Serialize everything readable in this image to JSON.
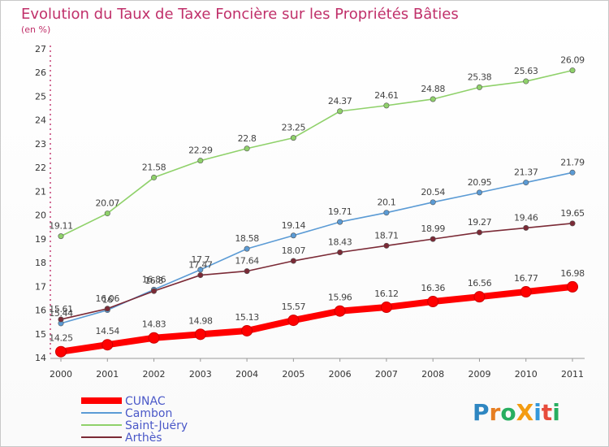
{
  "chart_data": {
    "type": "line",
    "title": "Evolution du Taux de Taxe Foncière sur les Propriétés Bâties",
    "ylabel": "(en %)",
    "xlabel": "",
    "categories": [
      "2000",
      "2001",
      "2002",
      "2003",
      "2004",
      "2005",
      "2006",
      "2007",
      "2008",
      "2009",
      "2010",
      "2011"
    ],
    "ylim": [
      14,
      27
    ],
    "yticks": [
      "14",
      "15",
      "16",
      "17",
      "18",
      "19",
      "20",
      "21",
      "22",
      "23",
      "24",
      "25",
      "26",
      "27"
    ],
    "series": [
      {
        "name": "CUNAC",
        "color": "#ff0000",
        "values": [
          14.25,
          14.54,
          14.83,
          14.98,
          15.13,
          15.57,
          15.96,
          16.12,
          16.36,
          16.56,
          16.77,
          16.98
        ],
        "labels": [
          "14.25",
          "14.54",
          "14.83",
          "14.98",
          "15.13",
          "15.57",
          "15.96",
          "16.12",
          "16.36",
          "16.56",
          "16.77",
          "16.98"
        ]
      },
      {
        "name": "Cambon",
        "color": "#5b9bd5",
        "values": [
          15.44,
          16.0,
          16.86,
          17.7,
          18.58,
          19.14,
          19.71,
          20.1,
          20.54,
          20.95,
          21.37,
          21.79
        ],
        "labels": [
          "15.44",
          "16",
          "16.86",
          "17.7",
          "18.58",
          "19.14",
          "19.71",
          "20.1",
          "20.54",
          "20.95",
          "21.37",
          "21.79"
        ]
      },
      {
        "name": "Saint-Juéry",
        "color": "#8fd16a",
        "values": [
          19.11,
          20.07,
          21.58,
          22.29,
          22.8,
          23.25,
          24.37,
          24.61,
          24.88,
          25.38,
          25.63,
          26.09
        ],
        "labels": [
          "19.11",
          "20.07",
          "21.58",
          "22.29",
          "22.8",
          "23.25",
          "24.37",
          "24.61",
          "24.88",
          "25.38",
          "25.63",
          "26.09"
        ]
      },
      {
        "name": "Arthès",
        "color": "#7b2a36",
        "values": [
          15.61,
          16.06,
          16.8,
          17.47,
          17.64,
          18.07,
          18.43,
          18.71,
          18.99,
          19.27,
          19.46,
          19.65
        ],
        "labels": [
          "15.61",
          "16.06",
          "16.8",
          "17.47",
          "17.64",
          "18.07",
          "18.43",
          "18.71",
          "18.99",
          "19.27",
          "19.46",
          "19.65"
        ]
      }
    ],
    "legend": "bottom-left"
  },
  "branding": {
    "logo_text": "ProXiti",
    "logo_letters": [
      {
        "ch": "P",
        "color": "#2e86c1"
      },
      {
        "ch": "r",
        "color": "#e67e22"
      },
      {
        "ch": "o",
        "color": "#27ae60"
      },
      {
        "ch": "X",
        "color": "#f39c12"
      },
      {
        "ch": "i",
        "color": "#3498db"
      },
      {
        "ch": "t",
        "color": "#e74c3c"
      },
      {
        "ch": "i",
        "color": "#27ae60"
      }
    ]
  }
}
